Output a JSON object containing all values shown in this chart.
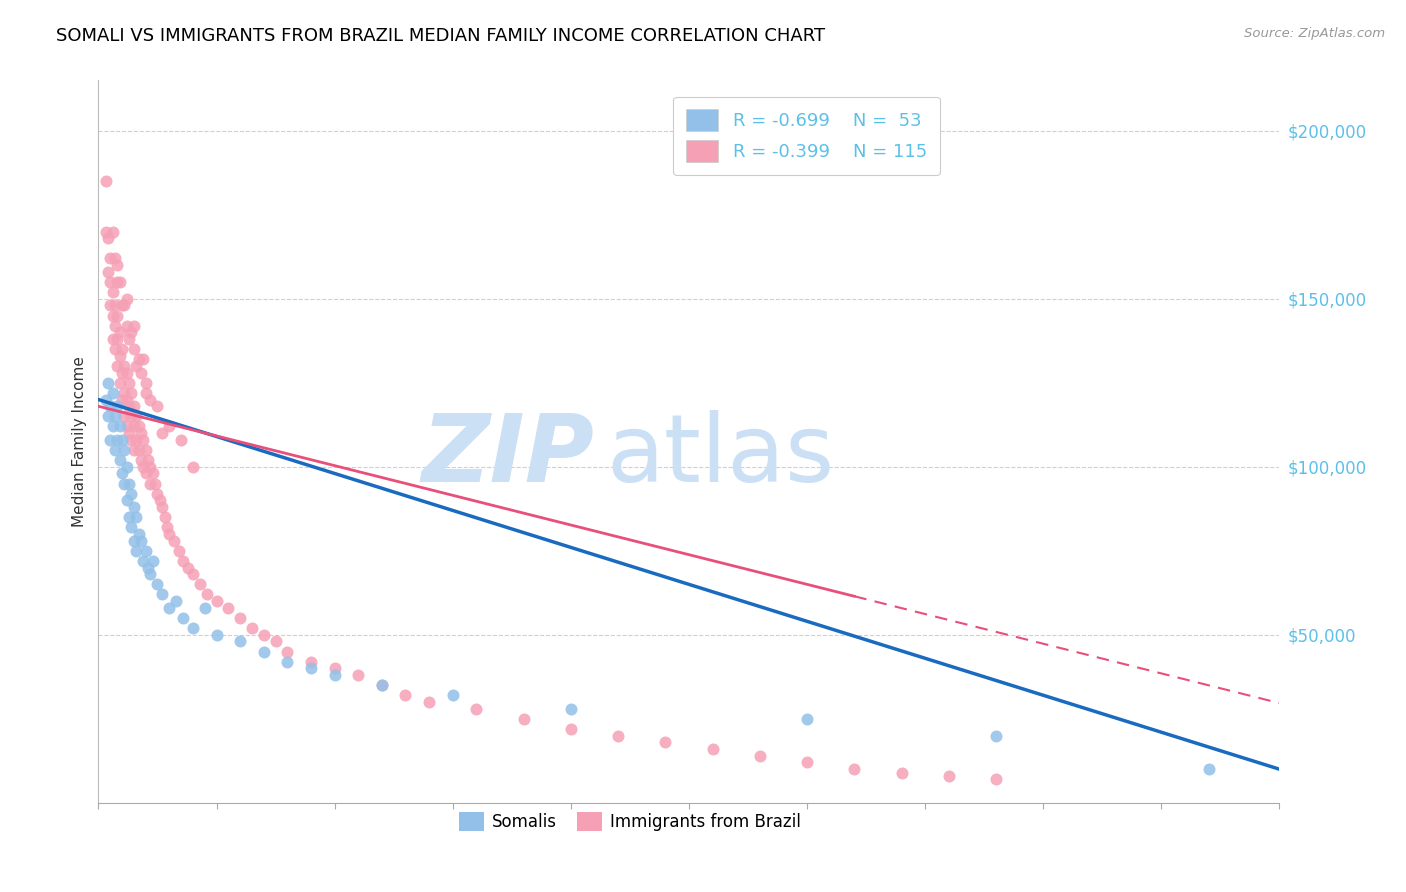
{
  "title": "SOMALI VS IMMIGRANTS FROM BRAZIL MEDIAN FAMILY INCOME CORRELATION CHART",
  "source": "Source: ZipAtlas.com",
  "ylabel": "Median Family Income",
  "y_ticks": [
    0,
    50000,
    100000,
    150000,
    200000
  ],
  "y_tick_labels": [
    "",
    "$50,000",
    "$100,000",
    "$150,000",
    "$200,000"
  ],
  "x_min": 0.0,
  "x_max": 0.5,
  "y_min": 0,
  "y_max": 215000,
  "legend_r_somali": "R = -0.699",
  "legend_n_somali": "N =  53",
  "legend_r_brazil": "R = -0.399",
  "legend_n_brazil": "N = 115",
  "somali_color": "#92c0e8",
  "brazil_color": "#f5a0b5",
  "somali_line_color": "#1a6bbf",
  "brazil_line_color": "#e8507a",
  "watermark_zip": "ZIP",
  "watermark_atlas": "atlas",
  "watermark_color": "#cce0f5",
  "background_color": "#ffffff",
  "grid_color": "#d0d0d0",
  "title_fontsize": 13,
  "axis_label_color": "#5cc0e8",
  "legend_text_color": "#5cc0e8",
  "somali_scatter_x": [
    0.003,
    0.004,
    0.004,
    0.005,
    0.005,
    0.006,
    0.006,
    0.007,
    0.007,
    0.008,
    0.008,
    0.009,
    0.009,
    0.01,
    0.01,
    0.011,
    0.011,
    0.012,
    0.012,
    0.013,
    0.013,
    0.014,
    0.014,
    0.015,
    0.015,
    0.016,
    0.016,
    0.017,
    0.018,
    0.019,
    0.02,
    0.021,
    0.022,
    0.023,
    0.025,
    0.027,
    0.03,
    0.033,
    0.036,
    0.04,
    0.045,
    0.05,
    0.06,
    0.07,
    0.08,
    0.09,
    0.1,
    0.12,
    0.15,
    0.2,
    0.3,
    0.38,
    0.47
  ],
  "somali_scatter_y": [
    120000,
    115000,
    125000,
    118000,
    108000,
    122000,
    112000,
    115000,
    105000,
    118000,
    108000,
    112000,
    102000,
    108000,
    98000,
    105000,
    95000,
    100000,
    90000,
    95000,
    85000,
    92000,
    82000,
    88000,
    78000,
    85000,
    75000,
    80000,
    78000,
    72000,
    75000,
    70000,
    68000,
    72000,
    65000,
    62000,
    58000,
    60000,
    55000,
    52000,
    58000,
    50000,
    48000,
    45000,
    42000,
    40000,
    38000,
    35000,
    32000,
    28000,
    25000,
    20000,
    10000
  ],
  "brazil_scatter_x": [
    0.003,
    0.003,
    0.004,
    0.004,
    0.005,
    0.005,
    0.005,
    0.006,
    0.006,
    0.006,
    0.007,
    0.007,
    0.007,
    0.008,
    0.008,
    0.008,
    0.009,
    0.009,
    0.009,
    0.01,
    0.01,
    0.01,
    0.011,
    0.011,
    0.011,
    0.012,
    0.012,
    0.012,
    0.013,
    0.013,
    0.013,
    0.014,
    0.014,
    0.014,
    0.015,
    0.015,
    0.015,
    0.016,
    0.016,
    0.017,
    0.017,
    0.018,
    0.018,
    0.019,
    0.019,
    0.02,
    0.02,
    0.021,
    0.022,
    0.022,
    0.023,
    0.024,
    0.025,
    0.026,
    0.027,
    0.028,
    0.029,
    0.03,
    0.032,
    0.034,
    0.036,
    0.038,
    0.04,
    0.043,
    0.046,
    0.05,
    0.055,
    0.06,
    0.065,
    0.07,
    0.075,
    0.08,
    0.09,
    0.1,
    0.11,
    0.12,
    0.13,
    0.14,
    0.16,
    0.18,
    0.2,
    0.22,
    0.24,
    0.26,
    0.28,
    0.3,
    0.32,
    0.34,
    0.36,
    0.38,
    0.02,
    0.025,
    0.03,
    0.035,
    0.04,
    0.012,
    0.015,
    0.018,
    0.022,
    0.027,
    0.008,
    0.01,
    0.013,
    0.016,
    0.02,
    0.007,
    0.009,
    0.011,
    0.014,
    0.017,
    0.006,
    0.008,
    0.012,
    0.015,
    0.019
  ],
  "brazil_scatter_y": [
    185000,
    170000,
    168000,
    158000,
    162000,
    155000,
    148000,
    152000,
    145000,
    138000,
    148000,
    142000,
    135000,
    145000,
    138000,
    130000,
    140000,
    133000,
    125000,
    135000,
    128000,
    120000,
    130000,
    122000,
    115000,
    128000,
    120000,
    112000,
    125000,
    118000,
    110000,
    122000,
    115000,
    108000,
    118000,
    112000,
    105000,
    115000,
    108000,
    112000,
    105000,
    110000,
    102000,
    108000,
    100000,
    105000,
    98000,
    102000,
    100000,
    95000,
    98000,
    95000,
    92000,
    90000,
    88000,
    85000,
    82000,
    80000,
    78000,
    75000,
    72000,
    70000,
    68000,
    65000,
    62000,
    60000,
    58000,
    55000,
    52000,
    50000,
    48000,
    45000,
    42000,
    40000,
    38000,
    35000,
    32000,
    30000,
    28000,
    25000,
    22000,
    20000,
    18000,
    16000,
    14000,
    12000,
    10000,
    9000,
    8000,
    7000,
    125000,
    118000,
    112000,
    108000,
    100000,
    142000,
    135000,
    128000,
    120000,
    110000,
    155000,
    148000,
    138000,
    130000,
    122000,
    162000,
    155000,
    148000,
    140000,
    132000,
    170000,
    160000,
    150000,
    142000,
    132000
  ]
}
